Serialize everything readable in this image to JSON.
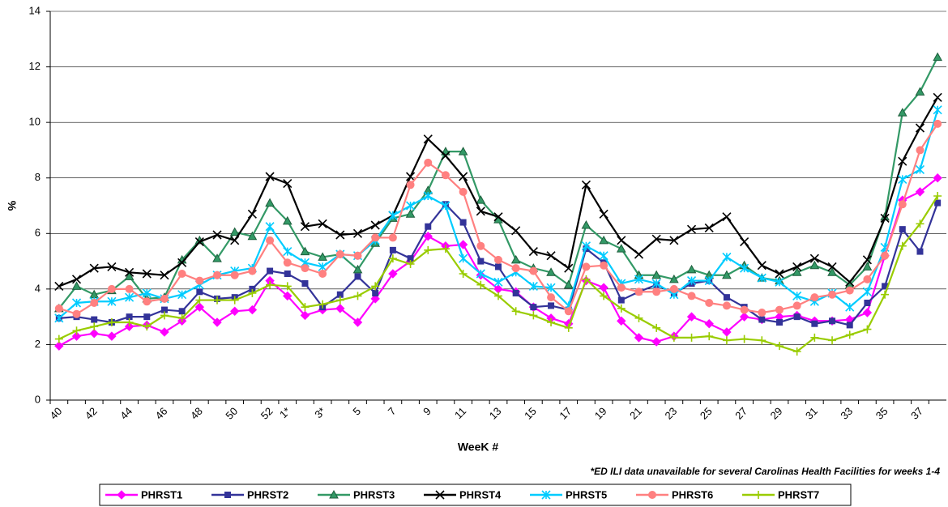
{
  "chart_data": {
    "type": "line",
    "y_label": "%",
    "x_label": "WeeK #",
    "footnote": "*ED ILI data unavailable for several Carolinas Health Facilities for weeks 1-4",
    "categories": [
      "40",
      null,
      "42",
      null,
      "44",
      null,
      "46",
      null,
      "48",
      null,
      "50",
      null,
      "52",
      "1*",
      null,
      "3*",
      null,
      "5",
      null,
      "7",
      null,
      "9",
      null,
      "11",
      null,
      "13",
      null,
      "15",
      null,
      "17",
      null,
      "19",
      null,
      "21",
      null,
      "23",
      null,
      "25",
      null,
      "27",
      null,
      "29",
      null,
      "31",
      null,
      "33",
      null,
      "35",
      null,
      "37",
      null
    ],
    "ylim": [
      0,
      14
    ],
    "yticks": [
      0,
      2,
      4,
      6,
      8,
      10,
      12,
      14
    ],
    "grid": true,
    "series": [
      {
        "name": "PHRST1",
        "color": "#ff00ff",
        "marker": "diamond",
        "values": [
          1.95,
          2.3,
          2.4,
          2.3,
          2.65,
          2.7,
          2.45,
          2.85,
          3.35,
          2.8,
          3.2,
          3.25,
          4.3,
          3.75,
          3.05,
          3.25,
          3.3,
          2.8,
          3.65,
          4.55,
          5.0,
          5.9,
          5.55,
          5.6,
          4.5,
          4.0,
          3.9,
          3.35,
          2.95,
          2.75,
          4.3,
          4.05,
          2.85,
          2.25,
          2.1,
          2.3,
          3.0,
          2.75,
          2.45,
          3.0,
          2.9,
          3.0,
          3.05,
          2.85,
          2.85,
          2.9,
          3.15,
          5.2,
          7.2,
          7.5,
          8.0
        ]
      },
      {
        "name": "PHRST2",
        "color": "#333399",
        "marker": "square",
        "values": [
          2.95,
          3.0,
          2.9,
          2.8,
          3.0,
          3.0,
          3.25,
          3.2,
          3.9,
          3.65,
          3.7,
          4.0,
          4.65,
          4.55,
          4.2,
          3.35,
          3.8,
          4.45,
          3.85,
          5.4,
          5.1,
          6.25,
          7.05,
          6.4,
          5.0,
          4.8,
          3.85,
          3.35,
          3.4,
          3.25,
          5.45,
          4.95,
          3.6,
          3.9,
          4.15,
          3.85,
          4.2,
          4.3,
          3.7,
          3.35,
          2.9,
          2.8,
          3.0,
          2.75,
          2.85,
          2.7,
          3.5,
          4.1,
          6.15,
          5.35,
          7.1
        ]
      },
      {
        "name": "PHRST3",
        "color": "#339966",
        "marker": "triangle",
        "values": [
          3.3,
          4.1,
          3.8,
          3.95,
          4.45,
          3.65,
          3.7,
          5.05,
          5.75,
          5.1,
          6.05,
          5.9,
          7.1,
          6.45,
          5.35,
          5.15,
          5.25,
          4.7,
          5.65,
          6.55,
          6.7,
          7.55,
          8.95,
          8.95,
          7.2,
          6.5,
          5.05,
          4.75,
          4.6,
          4.15,
          6.3,
          5.75,
          5.45,
          4.5,
          4.5,
          4.35,
          4.7,
          4.5,
          4.5,
          4.85,
          4.4,
          4.3,
          4.6,
          4.85,
          4.6,
          4.15,
          4.8,
          6.6,
          10.35,
          11.1,
          12.35
        ]
      },
      {
        "name": "PHRST4",
        "color": "#000000",
        "marker": "x",
        "values": [
          4.1,
          4.35,
          4.75,
          4.8,
          4.6,
          4.55,
          4.5,
          4.95,
          5.7,
          5.95,
          5.75,
          6.7,
          8.05,
          7.8,
          6.25,
          6.35,
          5.95,
          6.0,
          6.3,
          6.65,
          8.05,
          9.4,
          8.8,
          8.05,
          6.8,
          6.6,
          6.1,
          5.35,
          5.2,
          4.75,
          7.75,
          6.7,
          5.75,
          5.25,
          5.8,
          5.75,
          6.15,
          6.2,
          6.6,
          5.7,
          4.85,
          4.55,
          4.8,
          5.1,
          4.8,
          4.25,
          5.05,
          6.55,
          8.6,
          9.8,
          10.9
        ]
      },
      {
        "name": "PHRST5",
        "color": "#00ccff",
        "marker": "star",
        "values": [
          2.95,
          3.5,
          3.55,
          3.55,
          3.7,
          3.85,
          3.65,
          3.8,
          4.15,
          4.5,
          4.65,
          4.75,
          6.25,
          5.35,
          4.95,
          4.8,
          5.25,
          5.2,
          5.75,
          6.65,
          7.0,
          7.35,
          7.0,
          5.1,
          4.55,
          4.25,
          4.6,
          4.1,
          4.05,
          3.4,
          5.55,
          5.2,
          4.2,
          4.35,
          4.2,
          3.8,
          4.3,
          4.3,
          5.15,
          4.75,
          4.4,
          4.25,
          3.75,
          3.55,
          3.85,
          3.35,
          3.9,
          5.5,
          7.95,
          8.3,
          10.45
        ]
      },
      {
        "name": "PHRST6",
        "color": "#ff8080",
        "marker": "circle",
        "values": [
          3.3,
          3.1,
          3.5,
          4.0,
          4.0,
          3.55,
          3.65,
          4.55,
          4.3,
          4.5,
          4.5,
          4.65,
          5.75,
          4.95,
          4.75,
          4.55,
          5.25,
          5.2,
          5.85,
          5.85,
          7.75,
          8.55,
          8.1,
          7.5,
          5.55,
          5.05,
          4.75,
          4.65,
          3.7,
          3.2,
          4.8,
          4.85,
          4.05,
          3.9,
          3.9,
          4.0,
          3.75,
          3.5,
          3.4,
          3.25,
          3.15,
          3.25,
          3.4,
          3.7,
          3.8,
          3.95,
          4.35,
          5.2,
          7.05,
          9.0,
          9.95
        ]
      },
      {
        "name": "PHRST7",
        "color": "#99cc00",
        "marker": "plus",
        "values": [
          2.2,
          2.5,
          2.65,
          2.8,
          2.8,
          2.65,
          3.05,
          2.95,
          3.6,
          3.6,
          3.6,
          3.85,
          4.15,
          4.1,
          3.35,
          3.45,
          3.6,
          3.75,
          4.1,
          5.1,
          4.9,
          5.4,
          5.45,
          4.55,
          4.15,
          3.75,
          3.2,
          3.05,
          2.8,
          2.6,
          4.35,
          3.75,
          3.3,
          2.95,
          2.6,
          2.25,
          2.25,
          2.3,
          2.15,
          2.2,
          2.15,
          1.95,
          1.75,
          2.25,
          2.15,
          2.35,
          2.55,
          3.8,
          5.55,
          6.35,
          7.35
        ]
      }
    ]
  }
}
